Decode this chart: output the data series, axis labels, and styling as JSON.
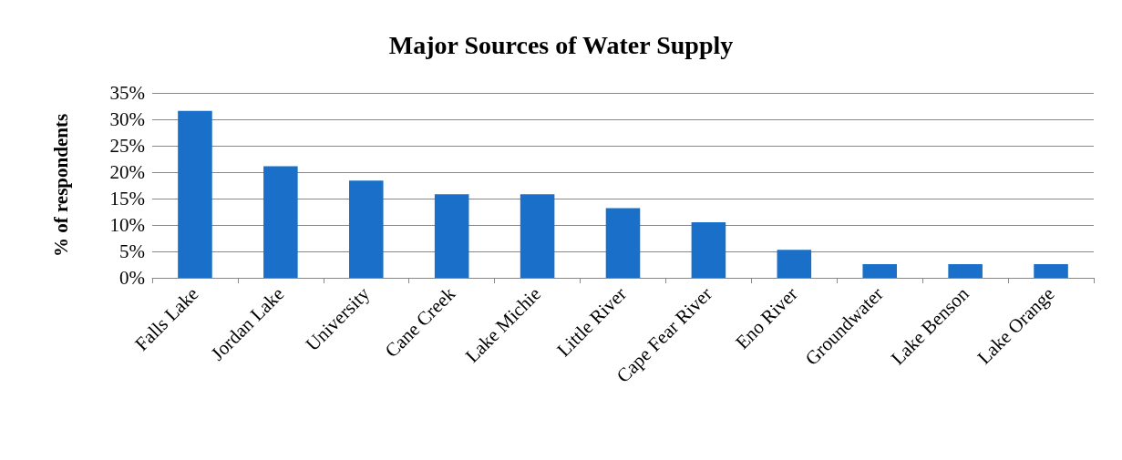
{
  "chart_data": {
    "type": "bar",
    "title": "Major Sources of Water Supply",
    "ylabel": "% of respondents",
    "categories": [
      "Falls Lake",
      "Jordan Lake",
      "University",
      "Cane Creek",
      "Lake Michie",
      "Little River",
      "Cape Fear River",
      "Eno River",
      "Groundwater",
      "Lake Benson",
      "Lake Orange"
    ],
    "series": [
      {
        "color": "#1a70c8",
        "values": [
          31.6,
          21.1,
          18.4,
          15.8,
          15.8,
          13.2,
          10.5,
          5.3,
          2.6,
          2.6,
          2.6
        ]
      }
    ],
    "ylim": [
      0,
      35
    ],
    "yticks": [
      {
        "value": 0,
        "label": "0%"
      },
      {
        "value": 5,
        "label": "5%"
      },
      {
        "value": 10,
        "label": "10%"
      },
      {
        "value": 15,
        "label": "15%"
      },
      {
        "value": 20,
        "label": "20%"
      },
      {
        "value": 25,
        "label": "25%"
      },
      {
        "value": 30,
        "label": "30%"
      },
      {
        "value": 35,
        "label": "35%"
      }
    ],
    "grid": "y"
  }
}
